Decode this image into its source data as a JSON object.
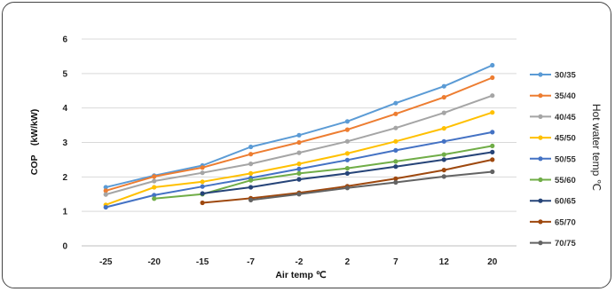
{
  "chart_data": {
    "type": "line",
    "xlabel": "Air temp ℃",
    "ylabel": "COP　(kW/kW)",
    "legend_title": "Hot water temp ℃",
    "legend_position": "right",
    "grid": "horizontal",
    "ylim": [
      0,
      6
    ],
    "yticks": [
      "0",
      "1",
      "2",
      "3",
      "4",
      "5",
      "6"
    ],
    "categories": [
      "-25",
      "-20",
      "-15",
      "-7",
      "-2",
      "2",
      "7",
      "12",
      "20"
    ],
    "series": [
      {
        "name": "30/35",
        "color": "#5b9bd5",
        "values": [
          1.7,
          2.04,
          2.33,
          2.87,
          3.21,
          3.61,
          4.14,
          4.63,
          5.24
        ]
      },
      {
        "name": "35/40",
        "color": "#ed7d31",
        "values": [
          1.6,
          2.01,
          2.27,
          2.66,
          3.0,
          3.37,
          3.83,
          4.31,
          4.88
        ]
      },
      {
        "name": "40/45",
        "color": "#a5a5a5",
        "values": [
          1.49,
          1.88,
          2.12,
          2.38,
          2.7,
          3.03,
          3.42,
          3.86,
          4.36
        ]
      },
      {
        "name": "45/50",
        "color": "#ffc000",
        "values": [
          1.19,
          1.7,
          1.86,
          2.1,
          2.38,
          2.68,
          3.03,
          3.41,
          3.87
        ]
      },
      {
        "name": "50/55",
        "color": "#4472c4",
        "values": [
          1.12,
          1.47,
          1.72,
          1.97,
          2.23,
          2.49,
          2.77,
          3.03,
          3.3
        ]
      },
      {
        "name": "55/60",
        "color": "#70ad47",
        "values": [
          null,
          1.37,
          1.5,
          1.9,
          2.1,
          2.25,
          2.45,
          2.65,
          2.9
        ]
      },
      {
        "name": "60/65",
        "color": "#264478",
        "values": [
          null,
          null,
          1.52,
          1.7,
          1.93,
          2.1,
          2.3,
          2.5,
          2.72
        ]
      },
      {
        "name": "65/70",
        "color": "#9e480e",
        "values": [
          null,
          null,
          1.25,
          1.38,
          1.54,
          1.73,
          1.95,
          2.2,
          2.5
        ]
      },
      {
        "name": "70/75",
        "color": "#636363",
        "values": [
          null,
          null,
          null,
          1.33,
          1.5,
          1.68,
          1.84,
          2.01,
          2.15
        ]
      }
    ]
  }
}
